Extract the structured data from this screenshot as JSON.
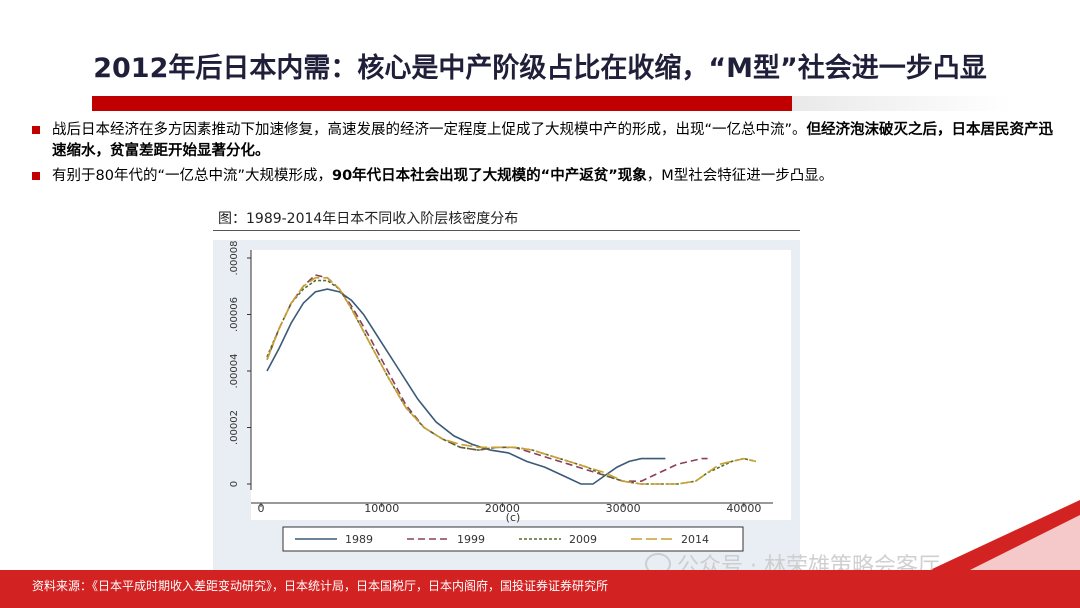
{
  "header": {
    "title": "2012年后日本内需：核心是中产阶级占比在收缩，“M型”社会进一步凸显"
  },
  "bullets": [
    {
      "text": "战后日本经济在多方因素推动下加速修复，高速发展的经济一定程度上促成了大规模中产的形成，出现“一亿总中流”。",
      "bold": "但经济泡沫破灭之后，日本居民资产迅速缩水，贫富差距开始显著分化。"
    },
    {
      "text": "有别于80年代的“一亿总中流”大规模形成，",
      "bold": "90年代日本社会出现了大规模的“中产返贫”现象",
      "tail": "，M型社会特征进一步凸显。"
    }
  ],
  "figure": {
    "caption": "图：1989-2014年日本不同收入阶层核密度分布"
  },
  "source": "资料来源：《日本平成时期收入差距变动研究》，日本统计局，日本国税厅，日本内阁府，国投证券证券研究所",
  "watermark": "公众号 · 林荣雄策略会客厅",
  "colors": {
    "accent": "#c00000",
    "band": "#d32222",
    "s1989": "#3a5a78",
    "s1999": "#8b3f58",
    "s2009": "#556b2f",
    "s2014": "#c8a030"
  },
  "chart_data": {
    "type": "line",
    "xlabel": "(c)",
    "xlim": [
      0,
      42000
    ],
    "ylim": [
      0,
      8e-05
    ],
    "x_ticks": [
      0,
      10000,
      20000,
      30000,
      40000
    ],
    "x_tick_labels": [
      "0",
      "10000",
      "20000",
      "30000",
      "40000"
    ],
    "y_ticks": [
      0,
      2e-05,
      4e-05,
      6e-05,
      8e-05
    ],
    "y_tick_labels": [
      "0",
      ".00002",
      ".00004",
      ".00006",
      ".00008"
    ],
    "legend_position": "bottom",
    "series": [
      {
        "name": "1989",
        "dash": "solid",
        "color_key": "s1989",
        "x": [
          500,
          1500,
          2500,
          3500,
          4500,
          5500,
          6500,
          7500,
          8500,
          10000,
          11500,
          13000,
          14500,
          16000,
          17500,
          19000,
          20500,
          22000,
          23500,
          25000,
          26500,
          27500,
          28500,
          29500,
          30500,
          31500,
          32500,
          33500
        ],
        "y": [
          4e-05,
          4.8e-05,
          5.7e-05,
          6.4e-05,
          6.8e-05,
          6.9e-05,
          6.8e-05,
          6.5e-05,
          6e-05,
          5e-05,
          4e-05,
          3e-05,
          2.2e-05,
          1.7e-05,
          1.4e-05,
          1.2e-05,
          1.1e-05,
          8e-06,
          6e-06,
          3e-06,
          0.0,
          0.0,
          3e-06,
          6e-06,
          8e-06,
          9e-06,
          9e-06,
          9e-06
        ]
      },
      {
        "name": "1999",
        "dash": "dash",
        "color_key": "s1999",
        "x": [
          500,
          1500,
          2500,
          3500,
          4500,
          5500,
          6500,
          7500,
          9000,
          10500,
          12000,
          13500,
          15000,
          16500,
          18000,
          19500,
          21000,
          22500,
          24000,
          25500,
          27000,
          28500,
          30000,
          31500,
          32500,
          33500,
          34500,
          35500,
          36500,
          37000
        ],
        "y": [
          4.4e-05,
          5.5e-05,
          6.4e-05,
          7e-05,
          7.4e-05,
          7.3e-05,
          6.9e-05,
          6.3e-05,
          5.2e-05,
          4e-05,
          2.8e-05,
          2e-05,
          1.6e-05,
          1.3e-05,
          1.2e-05,
          1.3e-05,
          1.3e-05,
          1.1e-05,
          9e-06,
          7e-06,
          5e-06,
          3e-06,
          1e-06,
          1e-06,
          3e-06,
          5e-06,
          7e-06,
          8e-06,
          9e-06,
          9e-06
        ]
      },
      {
        "name": "2009",
        "dash": "shortdash",
        "color_key": "s2009",
        "x": [
          500,
          1500,
          2500,
          3500,
          4500,
          5500,
          6500,
          7500,
          9000,
          10500,
          12000,
          13500,
          15000,
          16500,
          18000,
          19500,
          21000,
          22500,
          24000,
          25500,
          27000,
          28500,
          30000,
          31500,
          33000,
          34500,
          36000,
          37000,
          38000,
          39000,
          40000,
          41000
        ],
        "y": [
          4.5e-05,
          5.5e-05,
          6.4e-05,
          6.9e-05,
          7.2e-05,
          7.2e-05,
          6.9e-05,
          6.2e-05,
          5e-05,
          3.8e-05,
          2.7e-05,
          2e-05,
          1.6e-05,
          1.3e-05,
          1.2e-05,
          1.3e-05,
          1.3e-05,
          1.2e-05,
          1e-05,
          8e-06,
          6e-06,
          3e-06,
          1e-06,
          0.0,
          0.0,
          0.0,
          1e-06,
          4e-06,
          6e-06,
          8e-06,
          9e-06,
          8e-06
        ]
      },
      {
        "name": "2014",
        "dash": "longdash",
        "color_key": "s2014",
        "x": [
          500,
          1500,
          2500,
          3500,
          4500,
          5500,
          6500,
          7500,
          9000,
          10500,
          12000,
          13500,
          15000,
          16500,
          18000,
          19500,
          21000,
          22500,
          24000,
          25500,
          27000,
          28500,
          30000,
          31500,
          33000,
          34500,
          36000,
          37000,
          38000,
          39000,
          40000,
          41000
        ],
        "y": [
          4.4e-05,
          5.5e-05,
          6.4e-05,
          7e-05,
          7.3e-05,
          7.3e-05,
          6.9e-05,
          6.2e-05,
          5e-05,
          3.8e-05,
          2.7e-05,
          2e-05,
          1.6e-05,
          1.4e-05,
          1.3e-05,
          1.3e-05,
          1.3e-05,
          1.2e-05,
          1e-05,
          8e-06,
          6e-06,
          4e-06,
          1e-06,
          0.0,
          0.0,
          0.0,
          1e-06,
          4e-06,
          7e-06,
          8e-06,
          9e-06,
          8e-06
        ]
      }
    ]
  }
}
